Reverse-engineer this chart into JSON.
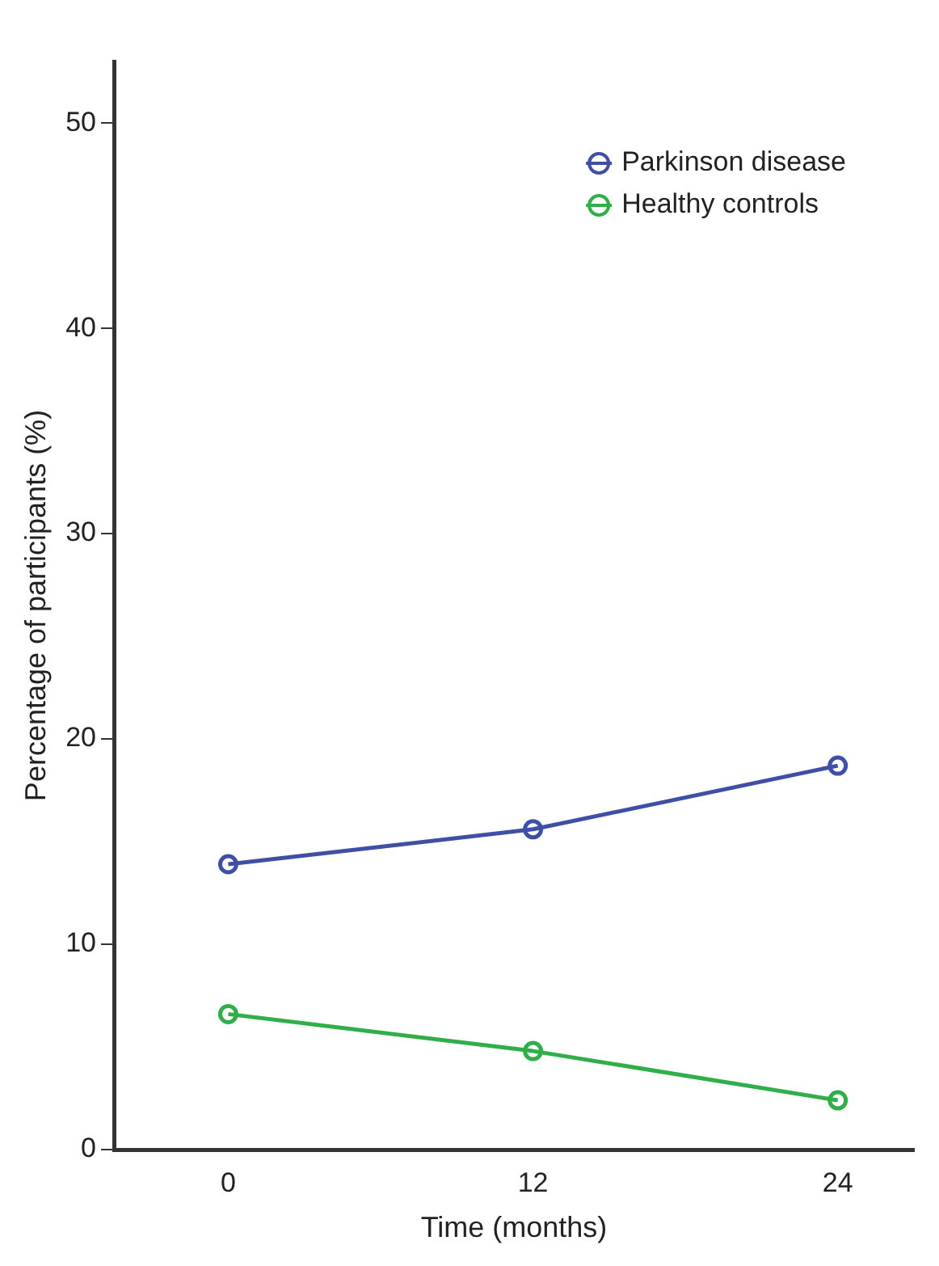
{
  "chart_data": {
    "type": "line",
    "xlabel": "Time (months)",
    "ylabel": "Percentage of participants (%)",
    "x": [
      0,
      12,
      24
    ],
    "series": [
      {
        "name": "Parkinson disease",
        "color": "#3f4fa6",
        "values": [
          13.9,
          15.6,
          18.7
        ]
      },
      {
        "name": "Healthy controls",
        "color": "#2fae4a",
        "values": [
          6.6,
          4.8,
          2.4
        ]
      }
    ],
    "xlim": [
      -4.5,
      27
    ],
    "xticks": [
      0,
      12,
      24
    ],
    "ylim": [
      0,
      53
    ],
    "yticks": [
      0,
      10,
      20,
      30,
      40,
      50
    ],
    "grid": false,
    "legend": "top right",
    "marker": "circle",
    "line_style": "solid"
  }
}
